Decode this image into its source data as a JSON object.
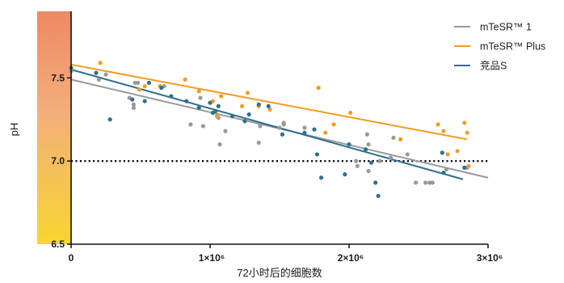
{
  "chart_data": {
    "type": "scatter",
    "xlabel": "72小时后的细胞数",
    "ylabel": "pH",
    "xlim": [
      0,
      3000000
    ],
    "ylim": [
      6.5,
      7.9
    ],
    "x_ticks": [
      {
        "value": 0,
        "label": "0"
      },
      {
        "value": 1000000,
        "label": "1×10⁶"
      },
      {
        "value": 2000000,
        "label": "2×10⁶"
      },
      {
        "value": 3000000,
        "label": "3×10⁶"
      }
    ],
    "y_ticks": [
      {
        "value": 6.5,
        "label": "6.5"
      },
      {
        "value": 7.0,
        "label": "7.0"
      },
      {
        "value": 7.5,
        "label": "7.5"
      }
    ],
    "reference_line": {
      "y": 7.0,
      "style": "dotted",
      "color": "#111111"
    },
    "background_gradient": {
      "top_color": "#ee8866",
      "mid_color": "#f3b07a",
      "bottom_color": "#f7d530"
    },
    "legend_position": "top-right",
    "series": [
      {
        "name": "mTeSR™ 1",
        "color": "#999999",
        "trend": {
          "x": [
            0,
            3000000
          ],
          "y": [
            7.49,
            6.9
          ]
        },
        "points": [
          [
            0,
            7.54
          ],
          [
            200000,
            7.49
          ],
          [
            250000,
            7.52
          ],
          [
            420000,
            7.38
          ],
          [
            450000,
            7.32
          ],
          [
            450000,
            7.34
          ],
          [
            460000,
            7.47
          ],
          [
            480000,
            7.47
          ],
          [
            670000,
            7.45
          ],
          [
            860000,
            7.22
          ],
          [
            930000,
            7.38
          ],
          [
            950000,
            7.21
          ],
          [
            1060000,
            7.26
          ],
          [
            1070000,
            7.1
          ],
          [
            1110000,
            7.18
          ],
          [
            1350000,
            7.11
          ],
          [
            1360000,
            7.21
          ],
          [
            1500000,
            7.2
          ],
          [
            1530000,
            7.22
          ],
          [
            1530000,
            7.23
          ],
          [
            1680000,
            7.2
          ],
          [
            2130000,
            7.16
          ],
          [
            2140000,
            7.1
          ],
          [
            2060000,
            6.97
          ],
          [
            2140000,
            6.94
          ],
          [
            2050000,
            7.0
          ],
          [
            2220000,
            7.0
          ],
          [
            2300000,
            7.02
          ],
          [
            2320000,
            7.14
          ],
          [
            2420000,
            7.04
          ],
          [
            2480000,
            6.87
          ],
          [
            2550000,
            6.87
          ],
          [
            2580000,
            6.87
          ],
          [
            2600000,
            6.87
          ],
          [
            2850000,
            6.96
          ],
          [
            2700000,
            6.95
          ]
        ]
      },
      {
        "name": "mTeSR™ Plus",
        "color": "#f39c1e",
        "trend": {
          "x": [
            0,
            2850000
          ],
          "y": [
            7.58,
            7.13
          ]
        },
        "points": [
          [
            210000,
            7.59
          ],
          [
            490000,
            7.43
          ],
          [
            530000,
            7.45
          ],
          [
            640000,
            7.45
          ],
          [
            820000,
            7.49
          ],
          [
            920000,
            7.42
          ],
          [
            1020000,
            7.36
          ],
          [
            1050000,
            7.27
          ],
          [
            1080000,
            7.39
          ],
          [
            1230000,
            7.33
          ],
          [
            1270000,
            7.41
          ],
          [
            1350000,
            7.33
          ],
          [
            1430000,
            7.31
          ],
          [
            1780000,
            7.44
          ],
          [
            1830000,
            7.17
          ],
          [
            1890000,
            7.22
          ],
          [
            2010000,
            7.29
          ],
          [
            2370000,
            7.13
          ],
          [
            2640000,
            7.22
          ],
          [
            2680000,
            7.18
          ],
          [
            2710000,
            7.04
          ],
          [
            2780000,
            7.06
          ],
          [
            2830000,
            7.23
          ],
          [
            2850000,
            7.17
          ],
          [
            2860000,
            6.97
          ]
        ]
      },
      {
        "name": "竞品S",
        "color": "#2f6f8f",
        "trend": {
          "x": [
            0,
            2820000
          ],
          "y": [
            7.55,
            6.89
          ]
        },
        "points": [
          [
            0,
            7.56
          ],
          [
            180000,
            7.53
          ],
          [
            280000,
            7.25
          ],
          [
            440000,
            7.37
          ],
          [
            530000,
            7.36
          ],
          [
            560000,
            7.47
          ],
          [
            650000,
            7.44
          ],
          [
            720000,
            7.39
          ],
          [
            830000,
            7.36
          ],
          [
            920000,
            7.32
          ],
          [
            1000000,
            7.35
          ],
          [
            1020000,
            7.29
          ],
          [
            1040000,
            7.3
          ],
          [
            1060000,
            7.33
          ],
          [
            1160000,
            7.27
          ],
          [
            1250000,
            7.24
          ],
          [
            1280000,
            7.28
          ],
          [
            1350000,
            7.34
          ],
          [
            1420000,
            7.33
          ],
          [
            1520000,
            7.16
          ],
          [
            1680000,
            7.17
          ],
          [
            1750000,
            7.19
          ],
          [
            1770000,
            7.04
          ],
          [
            1800000,
            6.9
          ],
          [
            1970000,
            6.92
          ],
          [
            2000000,
            7.1
          ],
          [
            2120000,
            7.07
          ],
          [
            2160000,
            6.99
          ],
          [
            2190000,
            6.87
          ],
          [
            2210000,
            6.79
          ],
          [
            2670000,
            7.05
          ],
          [
            2680000,
            6.93
          ],
          [
            2830000,
            6.96
          ]
        ]
      }
    ]
  }
}
